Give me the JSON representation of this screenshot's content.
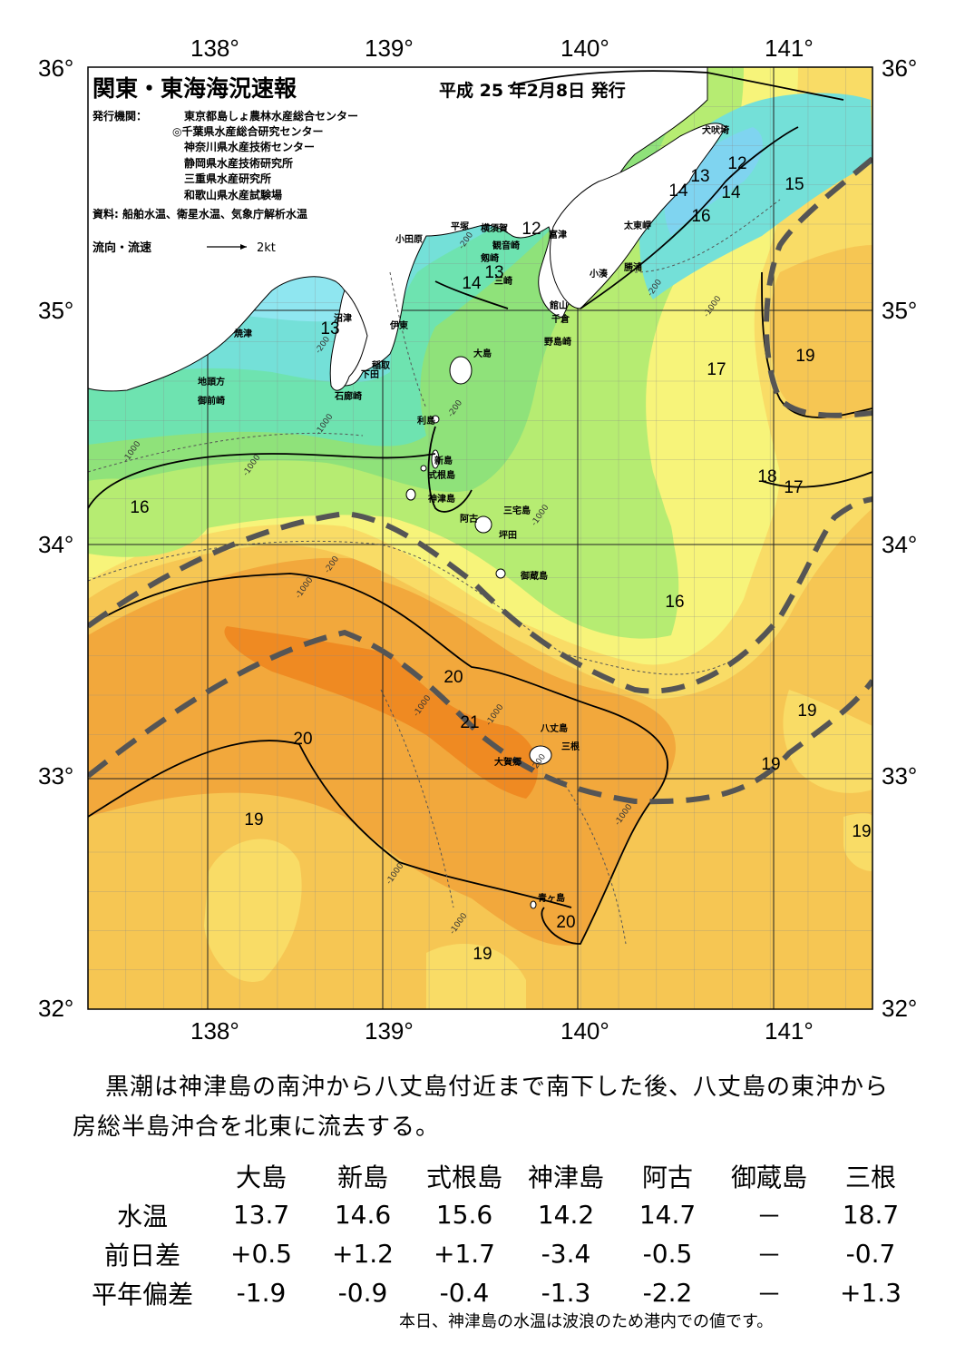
{
  "header": {
    "title": "関東・東海海況速報",
    "issue_date": "平成 25 年2月8日 発行",
    "publisher_label": "発行機関：",
    "publishers": [
      "東京都島しょ農林水産総合センター",
      "◎千葉県水産総合研究センター",
      "神奈川県水産技術センター",
      "静岡県水産技術研究所",
      "三重県水産研究所",
      "和歌山県水産試験場"
    ],
    "sources": "資料: 船舶水温、衛星水温、気象庁解析水温",
    "current_legend": "流向・流速",
    "current_scale": "2kt"
  },
  "map": {
    "lon_labels": [
      "138°",
      "139°",
      "140°",
      "141°"
    ],
    "lat_labels": [
      "36°",
      "35°",
      "34°",
      "33°",
      "32°"
    ],
    "colors": {
      "sea_10": "#7fd4f0",
      "sea_12": "#8fe6f0",
      "sea_13": "#74e0d8",
      "sea_14": "#6ee3b0",
      "sea_15": "#8fe27a",
      "sea_16": "#b6ec72",
      "sea_17": "#f7f47a",
      "sea_18": "#f9dc66",
      "sea_19": "#f6c653",
      "sea_20": "#f2a83c",
      "sea_21": "#ef8a22",
      "land": "#ffffff",
      "kuroshio": "#555555"
    },
    "isotherm_labels": [
      "12",
      "12",
      "13",
      "13",
      "13",
      "14",
      "14",
      "14",
      "15",
      "16",
      "16",
      "16",
      "17",
      "17",
      "18",
      "19",
      "19",
      "19",
      "19",
      "19",
      "19",
      "20",
      "20",
      "20",
      "21"
    ],
    "place_names": [
      "犬吠埼",
      "太東岬",
      "勝浦",
      "小湊",
      "富津",
      "平塚",
      "横須賀",
      "観音崎",
      "剱崎",
      "三崎",
      "小田原",
      "館山",
      "千倉",
      "野島崎",
      "沼津",
      "伊東",
      "焼津",
      "稲取",
      "下田",
      "石廊崎",
      "地頭方",
      "御前崎",
      "大島",
      "利島",
      "新島",
      "式根島",
      "神津島",
      "三宅島",
      "阿古",
      "坪田",
      "御蔵島",
      "八丈島",
      "三根",
      "大賀郷",
      "青ヶ島"
    ],
    "depth_labels": [
      "-200",
      "-1000"
    ]
  },
  "summary": "黒潮は神津島の南沖から八丈島付近まで南下した後、八丈島の東沖から房総半島沖合を北東に流去する。",
  "observations": {
    "stations": [
      "大島",
      "新島",
      "式根島",
      "神津島",
      "阿古",
      "御蔵島",
      "三根"
    ],
    "rows": [
      {
        "label": "水温",
        "values": [
          "13.7",
          "14.6",
          "15.6",
          "14.2",
          "14.7",
          "－",
          "18.7"
        ]
      },
      {
        "label": "前日差",
        "values": [
          "+0.5",
          "+1.2",
          "+1.7",
          "-3.4",
          "-0.5",
          "－",
          "-0.7"
        ]
      },
      {
        "label": "平年偏差",
        "values": [
          "-1.9",
          "-0.9",
          "-0.4",
          "-1.3",
          "-2.2",
          "－",
          "+1.3"
        ]
      }
    ]
  },
  "note": "本日、神津島の水温は波浪のため港内での値です。"
}
